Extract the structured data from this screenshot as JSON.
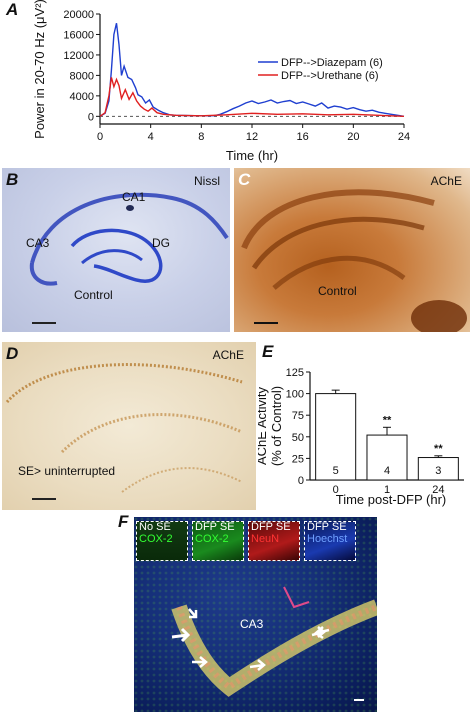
{
  "panels": {
    "A": {
      "letter": "A",
      "legend": [
        {
          "name": "DFP-->Diazepam (6)",
          "color": "#1f3fd0"
        },
        {
          "name": "DFP-->Urethane (6)",
          "color": "#e02020"
        }
      ]
    },
    "B": {
      "letter": "B",
      "labels": {
        "stain": "Nissl",
        "ca1": "CA1",
        "ca3": "CA3",
        "dg": "DG",
        "group": "Control"
      }
    },
    "C": {
      "letter": "C",
      "labels": {
        "stain": "AChE",
        "group": "Control"
      }
    },
    "D": {
      "letter": "D",
      "labels": {
        "stain": "AChE",
        "group": "SE> uninterrupted"
      }
    },
    "E": {
      "letter": "E",
      "significance": [
        "**",
        "**"
      ]
    },
    "F": {
      "letter": "F",
      "region_label": "CA3",
      "insets": [
        {
          "title": "No SE",
          "stain": "COX-2",
          "title_color": "#ffffff",
          "stain_color": "#33ff33"
        },
        {
          "title": "DFP SE",
          "stain": "COX-2",
          "title_color": "#ffffff",
          "stain_color": "#33ff33"
        },
        {
          "title": "DFP SE",
          "stain": "NeuN",
          "title_color": "#ffffff",
          "stain_color": "#ff3333"
        },
        {
          "title": "DFP SE",
          "stain": "Hoechst",
          "title_color": "#ffffff",
          "stain_color": "#6fa0ff"
        }
      ]
    }
  },
  "chart_data": [
    {
      "type": "line",
      "xlabel": "Time (hr)",
      "ylabel": "Power in 20-70 Hz (μV²)",
      "xlim": [
        0,
        24
      ],
      "ylim": [
        -1500,
        20000
      ],
      "xticks": [
        0,
        4,
        8,
        12,
        16,
        20,
        24
      ],
      "yticks": [
        0,
        4000,
        8000,
        12000,
        16000,
        20000
      ],
      "baseline_dashed": true,
      "legend_position": "right",
      "series": [
        {
          "name": "DFP-->Diazepam (6)",
          "color": "#1f3fd0",
          "x": [
            0,
            0.4,
            0.7,
            0.9,
            1.1,
            1.3,
            1.5,
            1.7,
            1.9,
            2.2,
            2.5,
            2.8,
            3.0,
            3.3,
            3.6,
            3.9,
            4.2,
            4.6,
            5.0,
            5.5,
            6.0,
            7.0,
            8.0,
            9.0,
            9.5,
            10.0,
            10.5,
            11.0,
            11.5,
            12.0,
            12.5,
            13.0,
            13.5,
            14.0,
            14.5,
            15.0,
            15.5,
            16.0,
            16.5,
            17.0,
            17.5,
            18.0,
            18.5,
            19.0,
            19.5,
            20.0,
            20.5,
            21.0,
            21.5,
            22.0,
            22.5,
            23.0,
            23.5,
            24.0
          ],
          "values": [
            0,
            600,
            3000,
            9000,
            16000,
            18200,
            14000,
            8000,
            9800,
            7600,
            7200,
            5600,
            4200,
            3800,
            2600,
            3200,
            1800,
            1200,
            700,
            300,
            200,
            150,
            100,
            120,
            400,
            900,
            1500,
            2000,
            2600,
            3000,
            2500,
            2800,
            3200,
            2600,
            2900,
            3100,
            2500,
            2800,
            2400,
            2000,
            2600,
            1600,
            2000,
            1800,
            1400,
            1700,
            1300,
            1000,
            1200,
            800,
            600,
            400,
            200,
            0
          ]
        },
        {
          "name": "DFP-->Urethane (6)",
          "color": "#e02020",
          "x": [
            0,
            0.4,
            0.7,
            0.9,
            1.1,
            1.3,
            1.5,
            1.7,
            2.0,
            2.3,
            2.6,
            2.9,
            3.2,
            3.5,
            3.8,
            4.1,
            4.5,
            5.0,
            6.0,
            8.0,
            10.0,
            12.0,
            14.0,
            16.0,
            18.0,
            20.0,
            22.0,
            24.0
          ],
          "values": [
            0,
            700,
            4000,
            7600,
            5800,
            7200,
            6000,
            3500,
            5200,
            3300,
            4600,
            3000,
            2000,
            1400,
            1000,
            1600,
            700,
            400,
            200,
            100,
            300,
            600,
            400,
            500,
            300,
            400,
            200,
            0
          ]
        }
      ]
    },
    {
      "type": "bar",
      "xlabel": "Time post-DFP (hr)",
      "ylabel": "AChE Activity (% of Control)",
      "ylim": [
        0,
        125
      ],
      "yticks": [
        0,
        25,
        50,
        75,
        100,
        125
      ],
      "categories": [
        "0",
        "1",
        "24"
      ],
      "values": [
        100,
        52,
        26
      ],
      "errors": [
        4,
        9,
        2
      ],
      "n": [
        "5",
        "4",
        "3"
      ]
    }
  ]
}
